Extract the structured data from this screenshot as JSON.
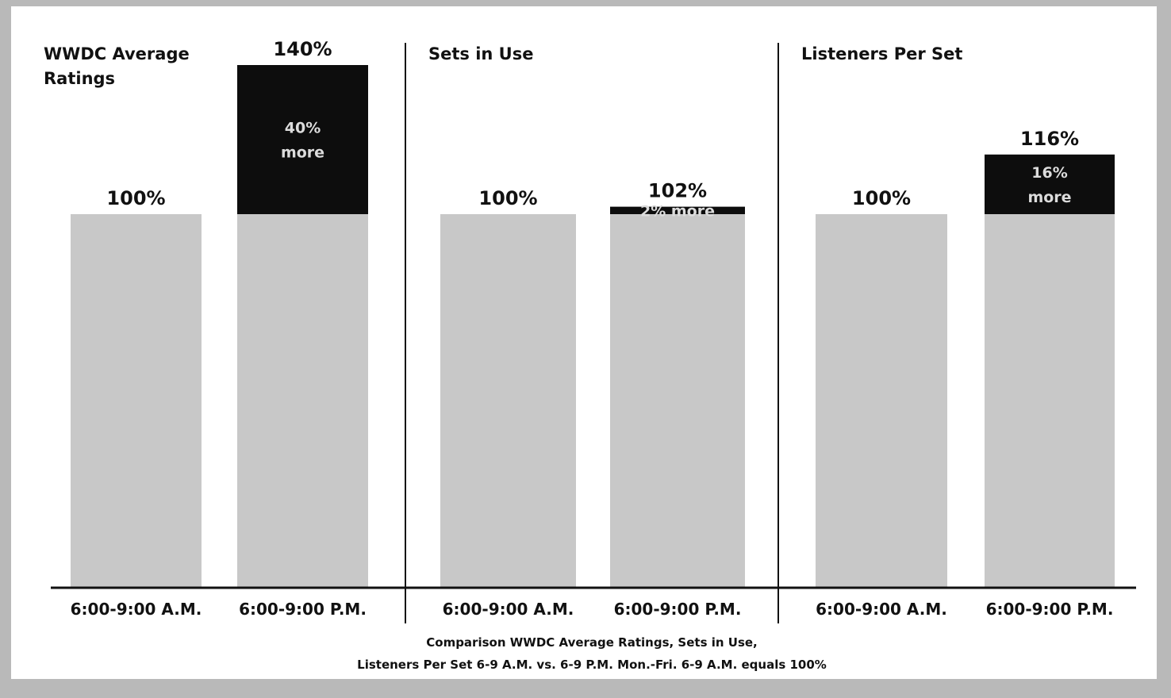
{
  "chart_data": [
    {
      "type": "bar",
      "title": "WWDC Average Ratings",
      "title_lines": [
        "WWDC Average",
        "Ratings"
      ],
      "categories": [
        "6:00-9:00 A.M.",
        "6:00-9:00 P.M."
      ],
      "values": [
        100,
        140
      ],
      "value_labels": [
        "100%",
        "140%"
      ],
      "increase": {
        "value": 40,
        "label_lines": [
          "40%",
          "more"
        ]
      },
      "ylim": [
        0,
        160
      ]
    },
    {
      "type": "bar",
      "title": "Sets in Use",
      "title_lines": [
        "Sets in Use"
      ],
      "categories": [
        "6:00-9:00 A.M.",
        "6:00-9:00 P.M."
      ],
      "values": [
        100,
        102
      ],
      "value_labels": [
        "100%",
        "102%"
      ],
      "increase": {
        "value": 2,
        "label_lines": [
          "2% more"
        ]
      },
      "ylim": [
        0,
        160
      ]
    },
    {
      "type": "bar",
      "title": "Listeners Per Set",
      "title_lines": [
        "Listeners Per Set"
      ],
      "categories": [
        "6:00-9:00 A.M.",
        "6:00-9:00 P.M."
      ],
      "values": [
        100,
        116
      ],
      "value_labels": [
        "100%",
        "116%"
      ],
      "increase": {
        "value": 16,
        "label_lines": [
          "16%",
          "more"
        ]
      },
      "ylim": [
        0,
        160
      ]
    }
  ],
  "caption_lines": [
    "Comparison WWDC Average Ratings, Sets in Use,",
    "Listeners Per Set 6-9 A.M. vs. 6-9 P.M. Mon.-Fri. 6-9 A.M. equals 100%"
  ],
  "colors": {
    "base_bar": "#c8c8c8",
    "increase_bar": "#0d0d0d",
    "background": "#ffffff",
    "frame": "#b9b9b9"
  }
}
